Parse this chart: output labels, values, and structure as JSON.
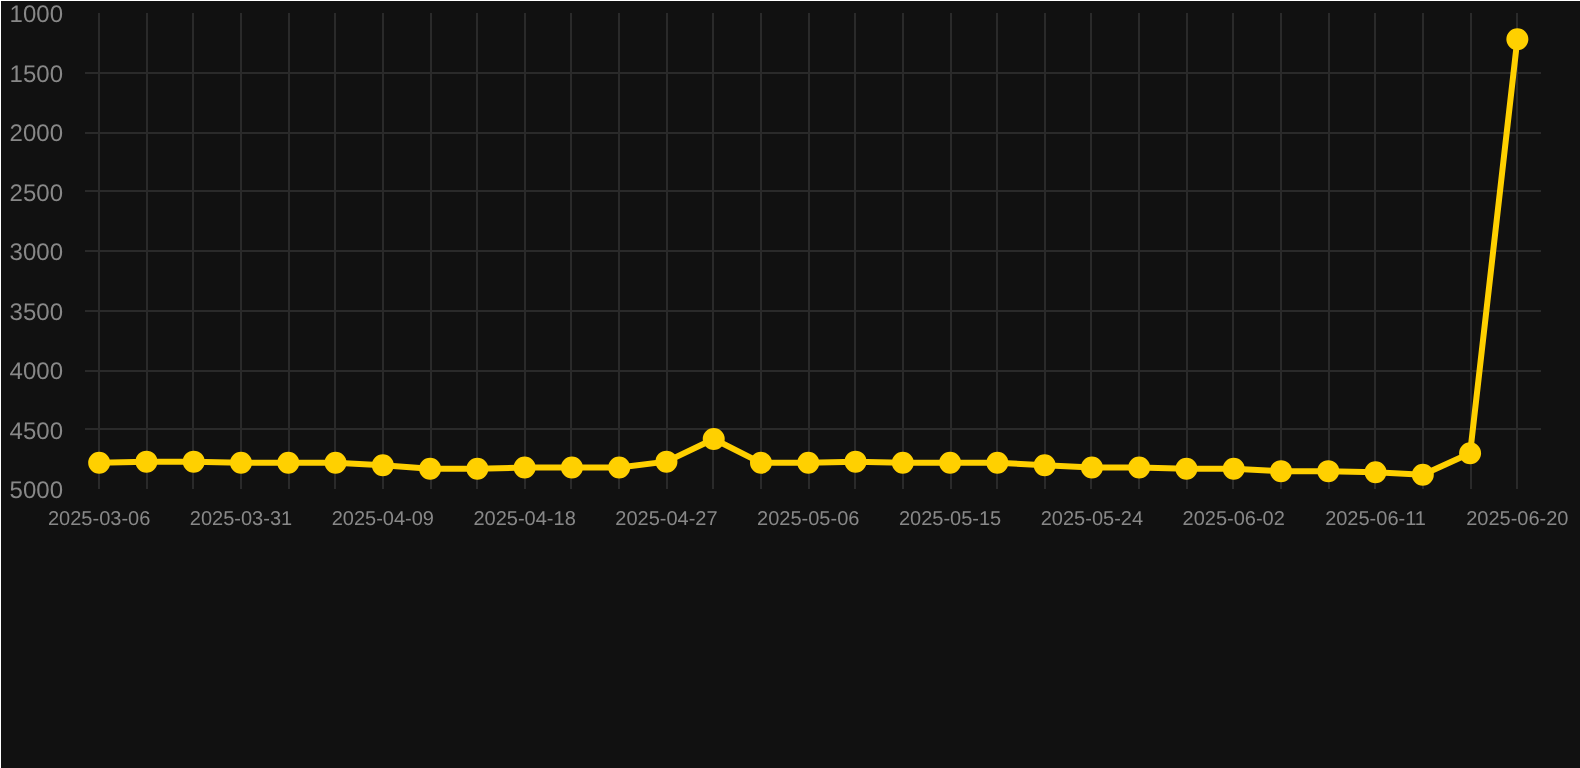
{
  "chart_data": {
    "type": "line",
    "categories": [
      "2025-03-06",
      null,
      null,
      "2025-03-31",
      null,
      null,
      "2025-04-09",
      null,
      null,
      "2025-04-18",
      null,
      null,
      "2025-04-27",
      null,
      null,
      "2025-05-06",
      null,
      null,
      "2025-05-15",
      null,
      null,
      "2025-05-24",
      null,
      null,
      "2025-06-02",
      null,
      null,
      "2025-06-11",
      null,
      null,
      "2025-06-20"
    ],
    "series": [
      {
        "color": "#ffd000",
        "values": [
          4780,
          4770,
          4770,
          4780,
          4780,
          4780,
          4800,
          4830,
          4830,
          4820,
          4820,
          4820,
          4770,
          4580,
          4780,
          4780,
          4770,
          4780,
          4780,
          4780,
          4800,
          4820,
          4820,
          4830,
          4830,
          4850,
          4850,
          4860,
          4880,
          4700,
          1220
        ]
      }
    ],
    "ylim": [
      5000,
      1000
    ],
    "yticks": [
      1000,
      1500,
      2000,
      2500,
      3000,
      3500,
      4000,
      4500,
      5000
    ],
    "grid": true,
    "marker": "circle",
    "line_style": "solid"
  }
}
